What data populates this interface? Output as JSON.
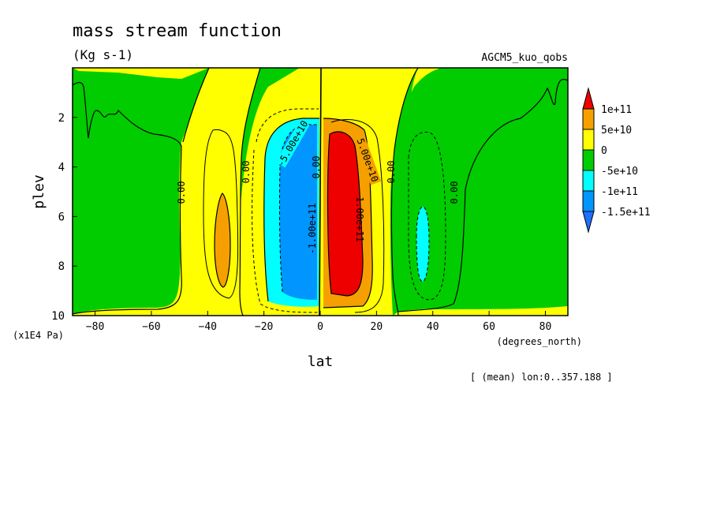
{
  "chart_data": {
    "type": "heatmap",
    "title": "mass stream function",
    "units": "(Kg s-1)",
    "run_label": "AGCM5_kuo_qobs",
    "xlabel": "lat",
    "x_units": "(degrees_north)",
    "ylabel": "plev",
    "y_units": "(x1E4 Pa)",
    "footnote": "[ (mean) lon:0..357.188 ]",
    "xlim": [
      -88,
      88
    ],
    "ylim": [
      0,
      10
    ],
    "y_reversed": true,
    "x_ticks": [
      -80,
      -60,
      -40,
      -20,
      0,
      20,
      40,
      60,
      80
    ],
    "y_ticks": [
      2,
      4,
      6,
      8,
      10
    ],
    "legend": {
      "placement": "right",
      "labels": [
        "1e+11",
        "5e+10",
        "0",
        "-5e+10",
        "-1e+11",
        "-1.5e+11"
      ],
      "colors": [
        "#ee0000",
        "#f5a000",
        "#ffff00",
        "#00cc00",
        "#00ffff",
        "#0095ff",
        "#1e70ff"
      ]
    },
    "contour_labels": [
      "-5.00e+10",
      "-1.00e+11",
      "5.00e+10",
      "1.00e+11",
      "0.00",
      "0.00",
      "0.00",
      "0.00",
      "0.00",
      "0.00"
    ],
    "cells": [
      {
        "name": "southern-ferrel-cell",
        "center_lat": -35,
        "center_plev": 7,
        "sign": "positive",
        "peak_color": "#f5a000"
      },
      {
        "name": "southern-hadley-cell",
        "center_lat": -8,
        "center_plev": 6,
        "sign": "negative",
        "peak_value": -150000000000.0
      },
      {
        "name": "northern-hadley-cell",
        "center_lat": 10,
        "center_plev": 6,
        "sign": "positive",
        "peak_value": 100000000000.0
      },
      {
        "name": "northern-ferrel-cell",
        "center_lat": 36,
        "center_plev": 7.5,
        "sign": "negative",
        "peak_color": "#00ffff"
      }
    ]
  }
}
